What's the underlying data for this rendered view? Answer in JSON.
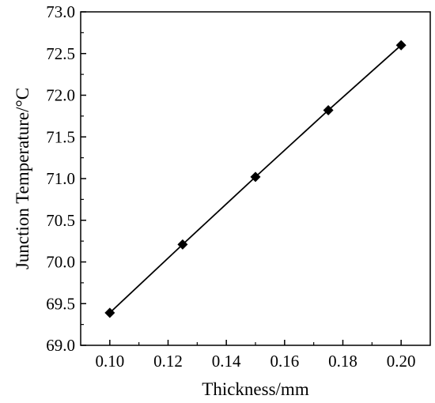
{
  "chart_data": {
    "type": "line",
    "title": "",
    "xlabel": "Thickness/mm",
    "ylabel": "Junction Temperature/°C",
    "xlim": [
      0.09,
      0.21
    ],
    "ylim": [
      69.0,
      73.0
    ],
    "x_ticks": [
      0.1,
      0.12,
      0.14,
      0.16,
      0.18,
      0.2
    ],
    "x_tick_labels": [
      "0.10",
      "0.12",
      "0.14",
      "0.16",
      "0.18",
      "0.20"
    ],
    "y_ticks": [
      69.0,
      69.5,
      70.0,
      70.5,
      71.0,
      71.5,
      72.0,
      72.5,
      73.0
    ],
    "y_tick_labels": [
      "69.0",
      "69.5",
      "70.0",
      "70.5",
      "71.0",
      "71.5",
      "72.0",
      "72.5",
      "73.0"
    ],
    "grid": false,
    "legend": "none",
    "marker": "diamond",
    "series": [
      {
        "x": [
          0.1,
          0.125,
          0.15,
          0.175,
          0.2
        ],
        "values": [
          69.39,
          70.21,
          71.02,
          71.82,
          72.6
        ],
        "color": "#000000"
      }
    ]
  }
}
